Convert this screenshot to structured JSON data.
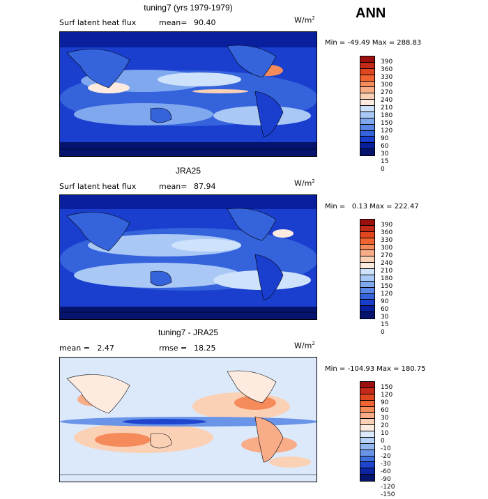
{
  "season": "ANN",
  "panels": [
    {
      "title": "tuning7 (yrs 1979-1979)",
      "left_label": "Surf latent heat flux",
      "mean_label": "mean=",
      "mean_value": "90.40",
      "units_base": "W/m",
      "units_exp": "2",
      "stats": "Min = -49.49 Max = 288.83",
      "colorbar_levels": [
        "390",
        "360",
        "330",
        "300",
        "270",
        "240",
        "210",
        "180",
        "150",
        "120",
        "90",
        "60",
        "30",
        "15",
        "0"
      ],
      "colorbar_colors": [
        "#9b0f0f",
        "#c42a18",
        "#e0461f",
        "#f06432",
        "#f58a5a",
        "#f8ac88",
        "#fbd1b6",
        "#fdebe0",
        "#cfe2fb",
        "#a9c8f6",
        "#80a8ee",
        "#5a86e6",
        "#3563dc",
        "#1a3fcf",
        "#0a1f9e",
        "#06146e"
      ]
    },
    {
      "title": "JRA25",
      "left_label": "Surf latent heat flux",
      "mean_label": "mean=",
      "mean_value": "87.94",
      "units_base": "W/m",
      "units_exp": "2",
      "stats": "Min =   0.13 Max = 222.47",
      "colorbar_levels": [
        "390",
        "360",
        "330",
        "300",
        "270",
        "240",
        "210",
        "180",
        "150",
        "120",
        "90",
        "60",
        "30",
        "15",
        "0"
      ],
      "colorbar_colors": [
        "#9b0f0f",
        "#c42a18",
        "#e0461f",
        "#f06432",
        "#f58a5a",
        "#f8ac88",
        "#fbd1b6",
        "#fdebe0",
        "#cfe2fb",
        "#a9c8f6",
        "#80a8ee",
        "#5a86e6",
        "#3563dc",
        "#1a3fcf",
        "#0a1f9e",
        "#06146e"
      ]
    },
    {
      "title": "tuning7 - JRA25",
      "left_label": "mean =   2.47",
      "mean_label": "rmse =",
      "mean_value": "18.25",
      "units_base": "W/m",
      "units_exp": "2",
      "stats": "Min = -104.93 Max = 180.75",
      "colorbar_levels": [
        "150",
        "120",
        "90",
        "60",
        "30",
        "20",
        "10",
        "0",
        "-10",
        "-20",
        "-30",
        "-60",
        "-90",
        "-120",
        "-150"
      ],
      "colorbar_colors": [
        "#9b0f0f",
        "#c42a18",
        "#e0461f",
        "#f06432",
        "#f58a5a",
        "#f8ac88",
        "#fbd1b6",
        "#fdebe0",
        "#dbe9fb",
        "#b7d2f7",
        "#92b6f0",
        "#6a94e8",
        "#3f6fdd",
        "#1f45cf",
        "#0d24a3",
        "#06146e"
      ]
    }
  ]
}
